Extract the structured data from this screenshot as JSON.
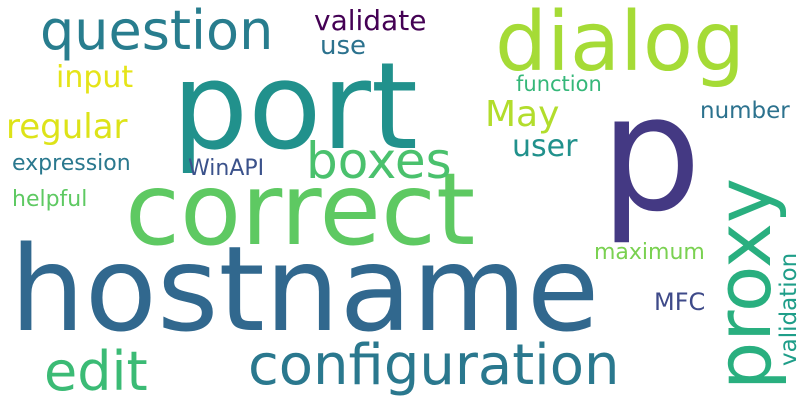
{
  "words": {
    "w1": {
      "text": "hostname",
      "color": "#31688e"
    },
    "w2": {
      "text": "port",
      "color": "#21918c"
    },
    "w3": {
      "text": "p",
      "color": "#443983"
    },
    "w4": {
      "text": "correct",
      "color": "#5ec962"
    },
    "w5": {
      "text": "dialog",
      "color": "#a5db36"
    },
    "w6": {
      "text": "proxy",
      "color": "#29af7f"
    },
    "w7": {
      "text": "configuration",
      "color": "#2a788e"
    },
    "w8": {
      "text": "question",
      "color": "#287d8e"
    },
    "w9": {
      "text": "boxes",
      "color": "#4ac16d"
    },
    "w10": {
      "text": "edit",
      "color": "#3bbb75"
    },
    "w11": {
      "text": "regular",
      "color": "#dde318"
    },
    "w12": {
      "text": "validate",
      "color": "#440154"
    },
    "w13": {
      "text": "input",
      "color": "#e5e419"
    },
    "w14": {
      "text": "May",
      "color": "#b2dd2c"
    },
    "w15": {
      "text": "user",
      "color": "#21918c"
    },
    "w16": {
      "text": "use",
      "color": "#2c728e"
    },
    "w17": {
      "text": "function",
      "color": "#35b779"
    },
    "w18": {
      "text": "number",
      "color": "#2c728e"
    },
    "w19": {
      "text": "expression",
      "color": "#2a788e"
    },
    "w20": {
      "text": "WinAPI",
      "color": "#3b528b"
    },
    "w21": {
      "text": "helpful",
      "color": "#5ec962"
    },
    "w22": {
      "text": "maximum",
      "color": "#7ad151"
    },
    "w23": {
      "text": "MFC",
      "color": "#3e4a89"
    },
    "w24": {
      "text": "validation",
      "color": "#1f9e89"
    }
  }
}
